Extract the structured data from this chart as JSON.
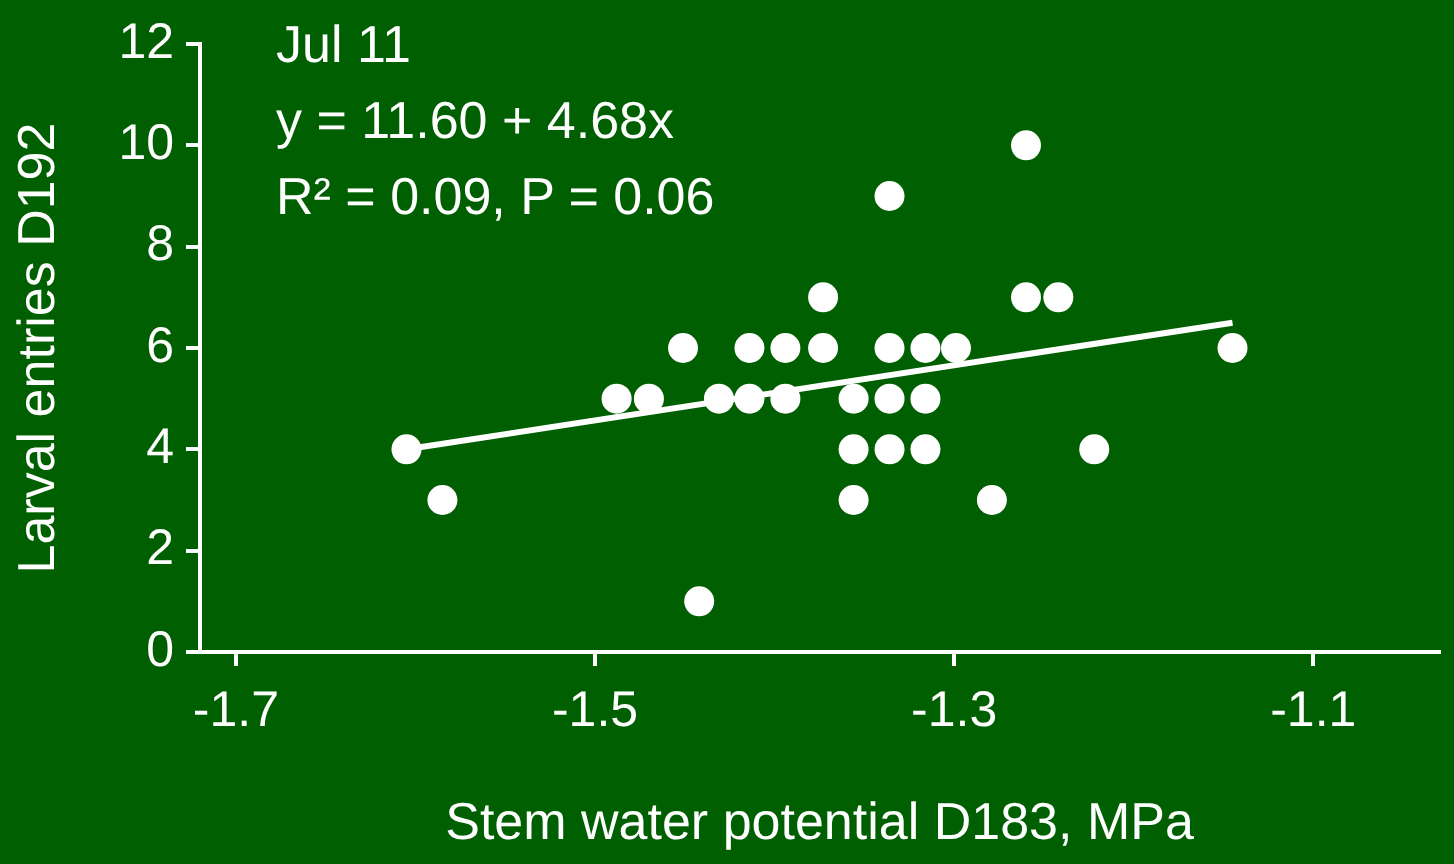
{
  "chart_data": {
    "type": "scatter",
    "xlabel": "Stem water potential D183, MPa",
    "ylabel": "Larval entries D192",
    "annotations": [
      "Jul 11",
      "y = 11.60 + 4.68x",
      "R² = 0.09, P = 0.06"
    ],
    "xlim": [
      -1.72,
      -1.03
    ],
    "xticks": [
      -1.7,
      -1.5,
      -1.3,
      -1.1
    ],
    "ylim": [
      0,
      12
    ],
    "yticks": [
      0,
      2,
      4,
      6,
      8,
      10,
      12
    ],
    "grid": false,
    "legend": false,
    "marker": "circle",
    "series": [
      {
        "color": "#ffffff",
        "x": [
          -1.605,
          -1.585,
          -1.442,
          -1.488,
          -1.47,
          -1.451,
          -1.431,
          -1.414,
          -1.414,
          -1.394,
          -1.394,
          -1.373,
          -1.373,
          -1.356,
          -1.356,
          -1.356,
          -1.336,
          -1.336,
          -1.336,
          -1.336,
          -1.316,
          -1.316,
          -1.316,
          -1.299,
          -1.279,
          -1.26,
          -1.26,
          -1.242,
          -1.222,
          -1.145
        ],
        "values": [
          4,
          3,
          1,
          5,
          5,
          6,
          5,
          6,
          5,
          6,
          5,
          7,
          6,
          5,
          4,
          3,
          9,
          6,
          5,
          4,
          6,
          5,
          4,
          6,
          3,
          10,
          7,
          7,
          4,
          6
        ]
      },
      {
        "type": "line",
        "color": "#ffffff",
        "marker": "none",
        "line_style": "solid",
        "x": [
          -1.605,
          -1.145
        ],
        "values": [
          4.0,
          6.5
        ]
      }
    ]
  }
}
